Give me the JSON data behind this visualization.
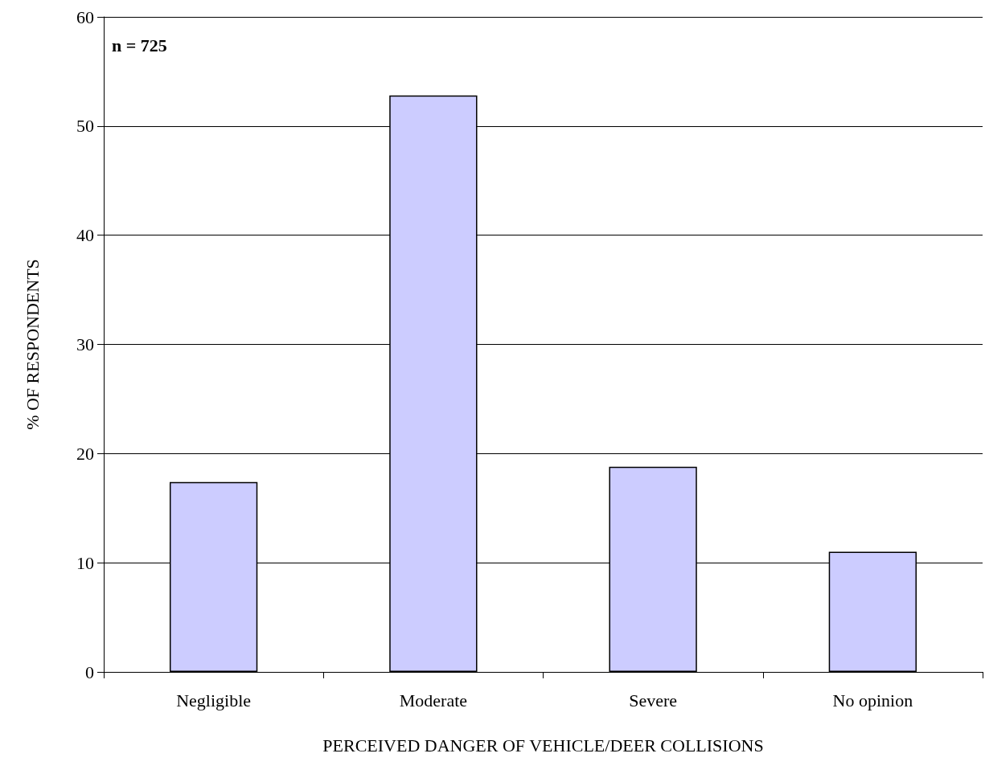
{
  "chart_data": {
    "type": "bar",
    "xlabel": "PERCEIVED DANGER OF VEHICLE/DEER COLLISIONS",
    "ylabel": "% OF RESPONDENTS",
    "categories": [
      "Negligible",
      "Moderate",
      "Severe",
      "No opinion"
    ],
    "values": [
      17.4,
      52.8,
      18.8,
      11.0
    ],
    "color": "#ccccff",
    "ylim": [
      0,
      60
    ],
    "yticks": [
      0,
      10,
      20,
      30,
      40,
      50,
      60
    ],
    "grid": "y",
    "annotations": [
      "n = 725"
    ]
  }
}
